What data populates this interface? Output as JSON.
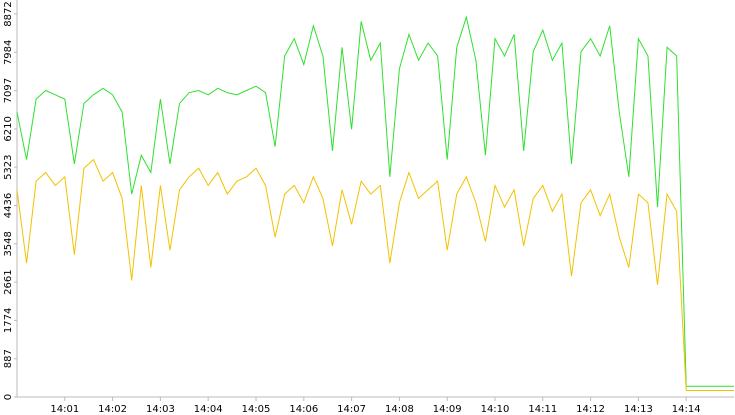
{
  "chart_data": {
    "type": "line",
    "x": [
      840.0,
      840.2,
      840.4,
      840.6,
      840.8,
      841.0,
      841.2,
      841.4,
      841.6,
      841.8,
      842.0,
      842.2,
      842.4,
      842.6,
      842.8,
      843.0,
      843.2,
      843.4,
      843.6,
      843.8,
      844.0,
      844.2,
      844.4,
      844.6,
      844.8,
      845.0,
      845.2,
      845.4,
      845.6,
      845.8,
      846.0,
      846.2,
      846.4,
      846.6,
      846.8,
      847.0,
      847.2,
      847.4,
      847.6,
      847.8,
      848.0,
      848.2,
      848.4,
      848.6,
      848.8,
      849.0,
      849.2,
      849.4,
      849.6,
      849.8,
      850.0,
      850.2,
      850.4,
      850.6,
      850.8,
      851.0,
      851.2,
      851.4,
      851.6,
      851.8,
      852.0,
      852.2,
      852.4,
      852.6,
      852.8,
      853.0,
      853.2,
      853.4,
      853.6,
      853.8,
      854.0,
      854.2,
      854.4,
      854.6,
      854.8,
      855.0
    ],
    "series": [
      {
        "color": "#2fe02f",
        "values": [
          6600,
          5500,
          6900,
          7100,
          7000,
          6900,
          5400,
          6800,
          7000,
          7150,
          7000,
          6600,
          4700,
          5600,
          5200,
          6900,
          5400,
          6800,
          7050,
          7100,
          7000,
          7150,
          7050,
          7000,
          7100,
          7200,
          7050,
          5800,
          7900,
          8300,
          7700,
          8600,
          7900,
          5700,
          8100,
          6200,
          8700,
          7800,
          8200,
          5100,
          7600,
          8400,
          7800,
          8200,
          7900,
          5500,
          8100,
          8800,
          7800,
          5600,
          8300,
          7900,
          8400,
          5700,
          8000,
          8500,
          7800,
          8200,
          5400,
          8000,
          8300,
          7900,
          8600,
          6600,
          5100,
          8300,
          7900,
          4400,
          8100,
          7900,
          250,
          250,
          250,
          250,
          250,
          250
        ]
      },
      {
        "color": "#f2c200",
        "values": [
          4800,
          3100,
          5000,
          5200,
          4900,
          5100,
          3300,
          5300,
          5500,
          5000,
          5200,
          4600,
          2700,
          4900,
          3000,
          4900,
          3400,
          4800,
          5100,
          5300,
          4900,
          5200,
          4700,
          5000,
          5100,
          5300,
          4900,
          3700,
          4700,
          4900,
          4500,
          5100,
          4600,
          3500,
          4800,
          4000,
          5000,
          4700,
          4900,
          3100,
          4500,
          5200,
          4600,
          4800,
          5000,
          3400,
          4700,
          5100,
          4500,
          3600,
          4900,
          4400,
          4800,
          3500,
          4600,
          4900,
          4300,
          4700,
          2800,
          4500,
          4800,
          4200,
          4700,
          3700,
          3000,
          4700,
          4500,
          2600,
          4700,
          4300,
          150,
          150,
          150,
          150,
          150,
          150
        ]
      }
    ],
    "xlim": [
      840,
      855
    ],
    "xticks": [
      {
        "value": 841,
        "label": "14:01"
      },
      {
        "value": 842,
        "label": "14:02"
      },
      {
        "value": 843,
        "label": "14:03"
      },
      {
        "value": 844,
        "label": "14:04"
      },
      {
        "value": 845,
        "label": "14:05"
      },
      {
        "value": 846,
        "label": "14:06"
      },
      {
        "value": 847,
        "label": "14:07"
      },
      {
        "value": 848,
        "label": "14:08"
      },
      {
        "value": 849,
        "label": "14:09"
      },
      {
        "value": 850,
        "label": "14:10"
      },
      {
        "value": 851,
        "label": "14:11"
      },
      {
        "value": 852,
        "label": "14:12"
      },
      {
        "value": 853,
        "label": "14:13"
      },
      {
        "value": 854,
        "label": "14:14"
      }
    ],
    "ylim": [
      0,
      8872
    ],
    "yticks": [
      0,
      887,
      1774,
      2661,
      3548,
      4436,
      5323,
      6210,
      7097,
      7984,
      8872
    ]
  }
}
